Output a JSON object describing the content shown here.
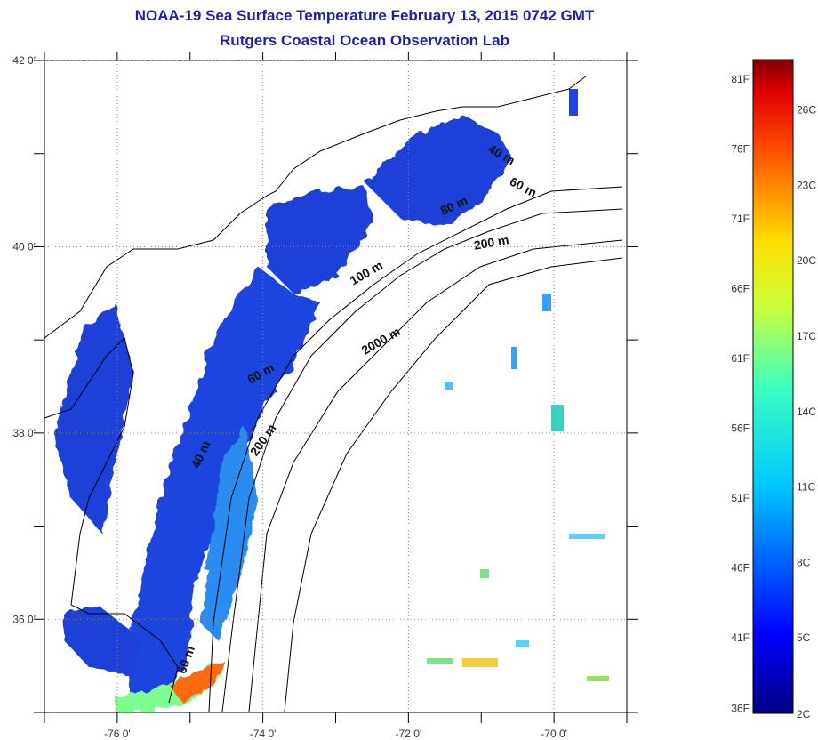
{
  "title": "NOAA-19 Sea Surface Temperature February 13, 2015 0742 GMT",
  "subtitle": "Rutgers Coastal Ocean Observation Lab",
  "chart_data": {
    "type": "heatmap",
    "xlim": [
      -77,
      -69
    ],
    "ylim": [
      35,
      42
    ],
    "x_ticks": [
      {
        "value": -76,
        "label": "-76 0'"
      },
      {
        "value": -74,
        "label": "-74 0'"
      },
      {
        "value": -72,
        "label": "-72 0'"
      },
      {
        "value": -70,
        "label": "-70 0'"
      }
    ],
    "y_ticks": [
      {
        "value": 42,
        "label": "42 0'"
      },
      {
        "value": 40,
        "label": "40 0'"
      },
      {
        "value": 38,
        "label": "38 0'"
      },
      {
        "value": 36,
        "label": "36 0'"
      }
    ],
    "grid": true,
    "depth_contours": [
      {
        "label": "40 m",
        "lon": -70.75,
        "lat": 40.95
      },
      {
        "label": "60 m",
        "lon": -70.45,
        "lat": 40.6
      },
      {
        "label": "80 m",
        "lon": -71.35,
        "lat": 40.4
      },
      {
        "label": "200 m",
        "lon": -70.85,
        "lat": 40.0
      },
      {
        "label": "100 m",
        "lon": -72.55,
        "lat": 39.68
      },
      {
        "label": "2000 m",
        "lon": -72.35,
        "lat": 38.95
      },
      {
        "label": "60 m",
        "lon": -74.0,
        "lat": 38.6
      },
      {
        "label": "40 m",
        "lon": -74.8,
        "lat": 37.75
      },
      {
        "label": "200 m",
        "lon": -73.95,
        "lat": 37.9
      },
      {
        "label": "60 m",
        "lon": -75.0,
        "lat": 35.55
      }
    ],
    "colorbar": {
      "min_c": 2,
      "max_c": 28,
      "fahrenheit_labels": [
        "36F",
        "41F",
        "46F",
        "51F",
        "56F",
        "61F",
        "66F",
        "71F",
        "76F",
        "81F"
      ],
      "fahrenheit_values": [
        36,
        41,
        46,
        51,
        56,
        61,
        66,
        71,
        76,
        81
      ],
      "celsius_labels": [
        "2C",
        "5C",
        "8C",
        "11C",
        "14C",
        "17C",
        "20C",
        "23C",
        "26C"
      ],
      "celsius_values": [
        2,
        5,
        8,
        11,
        14,
        17,
        20,
        23,
        26
      ]
    },
    "colors": {
      "land": "#ffffff",
      "ocean_cold": "#1a3fd8",
      "title": "#1f1fa8"
    }
  }
}
